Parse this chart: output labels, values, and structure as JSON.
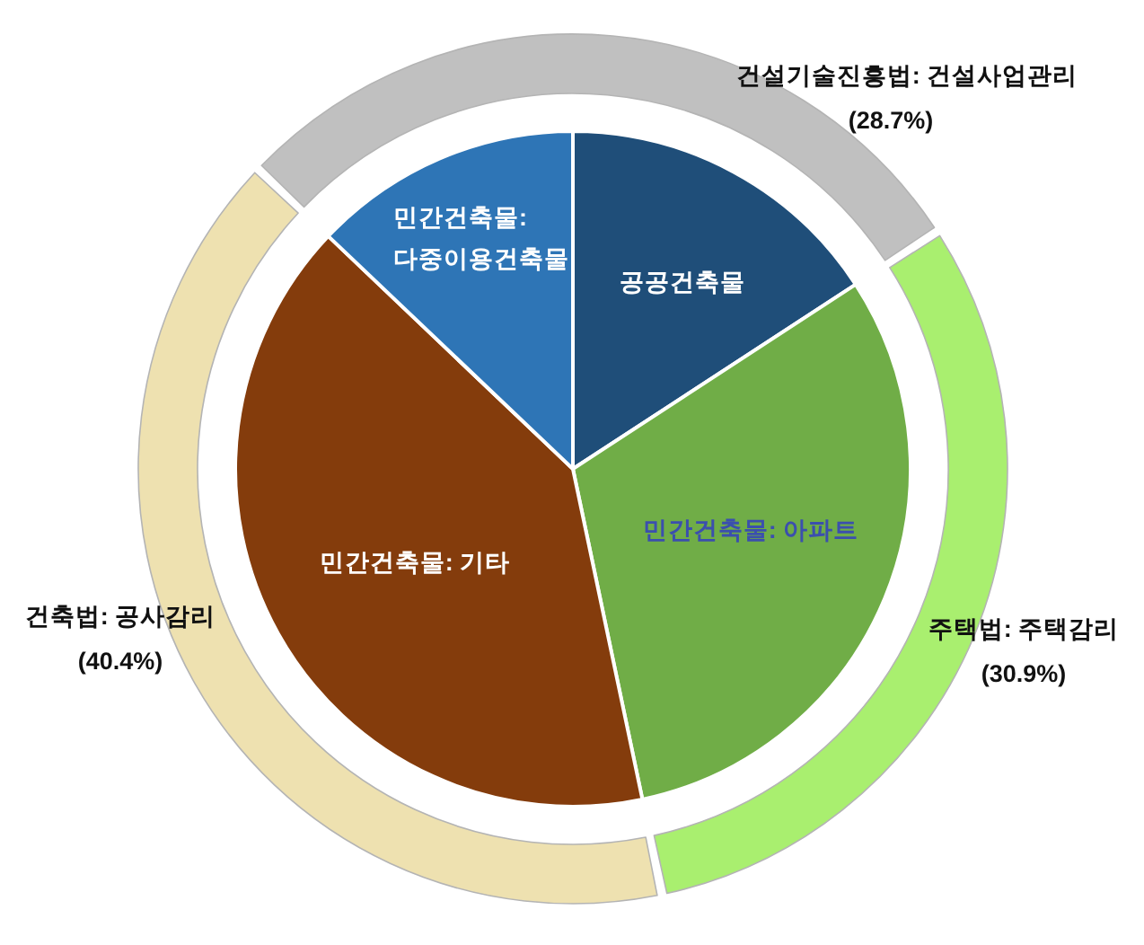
{
  "chart_data": [
    {
      "type": "donut",
      "categories": [
        "건설기술진흥법: 건설사업관리",
        "주택법: 주택감리",
        "건축법: 공사감리"
      ],
      "values": [
        28.7,
        30.9,
        40.4
      ],
      "value_labels": [
        "(28.7%)",
        "(30.9%)",
        "(40.4%)"
      ],
      "colors": [
        "#c0c0c0",
        "#a9ef6f",
        "#eee1b0"
      ]
    },
    {
      "type": "pie",
      "categories": [
        "공공건축물",
        "민간건축물: 아파트",
        "민간건축물: 기타",
        "민간건축물:\n다중이용건축물"
      ],
      "values": [
        15.8,
        30.9,
        40.4,
        12.9
      ],
      "colors": [
        "#1f4e79",
        "#70ad47",
        "#843c0c",
        "#2e75b6"
      ]
    }
  ]
}
